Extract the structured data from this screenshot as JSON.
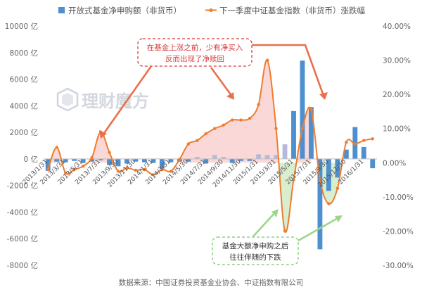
{
  "legend": {
    "bar_label": "开放式基金净申购额（非货币）",
    "line_label": "下一季度中证基金指数（非货币）涨跌幅"
  },
  "watermark": "理财魔方",
  "annotations": {
    "top": [
      "在基金上涨之前，少有净买入",
      "反而出现了净赎回"
    ],
    "bottom": [
      "基金大额净申购之后",
      "往往伴随的下跌"
    ]
  },
  "source": "数据来源：中国证券投资基金业协会、中证指数有限公司",
  "colors": {
    "bar": "#4e8fd0",
    "bar_faded": "#b7b9dc",
    "line": "#ee7d2f",
    "positive_fill": "#f9d1d0",
    "negative_fill": "#d5ebca",
    "annotation_red": "#d83b3b",
    "annotation_green": "#7bc86c"
  },
  "chart_data": {
    "type": "bar+line",
    "x_tick_labels": [
      "2013/1/31",
      "2013/3/31",
      "2013/5/31",
      "2013/7/31",
      "2013/9/30",
      "2013/11/30",
      "2014/1/31",
      "2014/3/31",
      "2014/5/30",
      "2014/7/31",
      "2014/9/30",
      "2014/11/30",
      "2015/1/31",
      "2015/3/31",
      "2015/5/31",
      "2015/7/31",
      "2015/9/30",
      "2015/11/30",
      "2016/1/31"
    ],
    "left_axis": {
      "ticks": [
        "10000 亿",
        "8000 亿",
        "6000 亿",
        "4000 亿",
        "2000 亿",
        "0 亿",
        "-2000 亿",
        "-4000 亿",
        "-6000 亿",
        "-8000 亿"
      ],
      "range": [
        -8000,
        10000
      ],
      "step": 2000
    },
    "right_axis": {
      "ticks": [
        "40.00%",
        "30.00%",
        "20.00%",
        "10.00%",
        "0.00%",
        "-10.00%",
        "-20.00%",
        "-30.00%"
      ],
      "range": [
        -30,
        40
      ],
      "step": 10
    },
    "series": [
      {
        "name": "开放式基金净申购额（非货币）",
        "type": "bar",
        "axis": "left",
        "unit": "亿",
        "values": [
          -900,
          -200,
          -250,
          -150,
          -300,
          -200,
          -100,
          -450,
          -550,
          -350,
          -200,
          -250,
          -300,
          -700,
          -250,
          -200,
          -200,
          150,
          -350,
          300,
          150,
          -300,
          -150,
          -150,
          350,
          300,
          300,
          1100,
          3600,
          7400,
          3900,
          -6800,
          -2400,
          -1400,
          700,
          2400,
          900,
          -700
        ]
      },
      {
        "name": "下一季度中证基金指数（非货币）涨跌幅",
        "type": "line",
        "axis": "right",
        "unit": "%",
        "values": [
          -2.0,
          4.5,
          -3.0,
          -2.0,
          -1.0,
          1.5,
          9.0,
          3.0,
          -2.5,
          -1.5,
          -2.2,
          -2.0,
          -3.5,
          -2.0,
          -2.5,
          1.0,
          5.5,
          6.5,
          8.5,
          10.0,
          11.0,
          12.5,
          12.5,
          13.0,
          17.0,
          30.0,
          10.0,
          -20.0,
          -5.0,
          10.0,
          15.5,
          -5.0,
          -12.0,
          -7.5,
          6.0,
          5.5,
          6.5,
          7.0
        ]
      }
    ],
    "grid": false,
    "legend_position": "top"
  }
}
